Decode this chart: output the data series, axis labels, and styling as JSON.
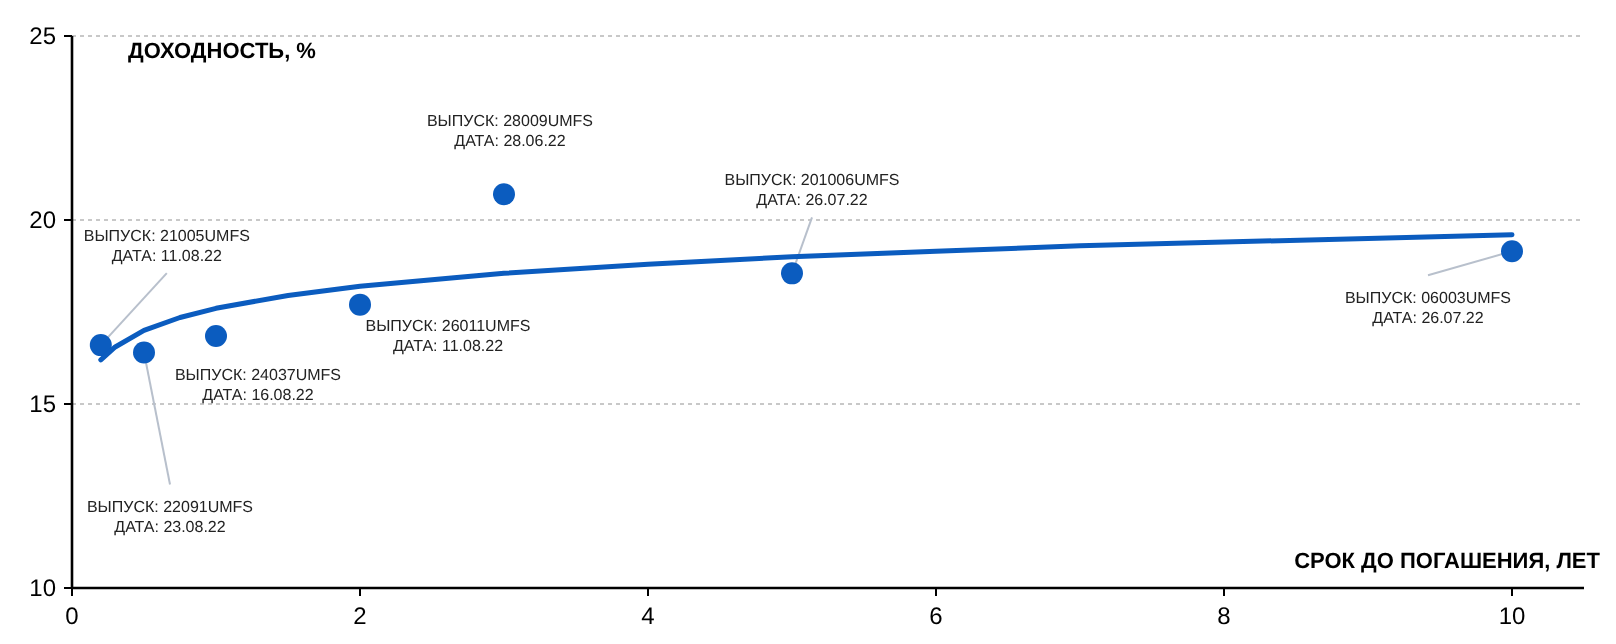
{
  "chart_data": {
    "type": "scatter",
    "xlabel": "СРОК ДО ПОГАШЕНИЯ, ЛЕТ",
    "ylabel": "ДОХОДНОСТЬ, %",
    "xlim": [
      0,
      10.5
    ],
    "xticks": [
      0,
      2,
      4,
      6,
      8,
      10
    ],
    "ylim": [
      10,
      25
    ],
    "yticks": [
      10,
      15,
      20,
      25
    ],
    "grid": "y",
    "series": [
      {
        "color": "#0b5cbf",
        "marker": "circle",
        "x": [
          0.2,
          0.5,
          1,
          2,
          3,
          5,
          10
        ],
        "values": [
          16.6,
          16.4,
          16.85,
          17.7,
          20.7,
          18.55,
          19.15
        ]
      },
      {
        "type": "line",
        "color": "#0b5cbf",
        "marker": "none",
        "line_style": "solid",
        "x": [
          0.2,
          0.3,
          0.5,
          0.75,
          1,
          1.5,
          2,
          3,
          4,
          5,
          6,
          7,
          8,
          9,
          10
        ],
        "values": [
          16.2,
          16.55,
          17.0,
          17.35,
          17.6,
          17.95,
          18.2,
          18.55,
          18.8,
          19.0,
          19.15,
          19.3,
          19.4,
          19.5,
          19.6
        ]
      }
    ],
    "annotations": [
      {
        "text": "ВЫПУСК: 21005UMFS\nДАТА: 11.08.22",
        "x": 0.2,
        "y": 16.6
      },
      {
        "text": "ВЫПУСК: 22091UMFS\nДАТА: 23.08.22",
        "x": 0.5,
        "y": 16.4
      },
      {
        "text": "ВЫПУСК: 24037UMFS\nДАТА: 16.08.22",
        "x": 1,
        "y": 16.85
      },
      {
        "text": "ВЫПУСК: 26011UMFS\nДАТА: 11.08.22",
        "x": 2,
        "y": 17.7
      },
      {
        "text": "ВЫПУСК: 28009UMFS\nДАТА: 28.06.22",
        "x": 3,
        "y": 20.7
      },
      {
        "text": "ВЫПУСК: 201006UMFS\nДАТА: 26.07.22",
        "x": 5,
        "y": 18.55
      },
      {
        "text": "ВЫПУСК: 06003UMFS\nДАТА: 26.07.22",
        "x": 10,
        "y": 19.15
      }
    ]
  }
}
